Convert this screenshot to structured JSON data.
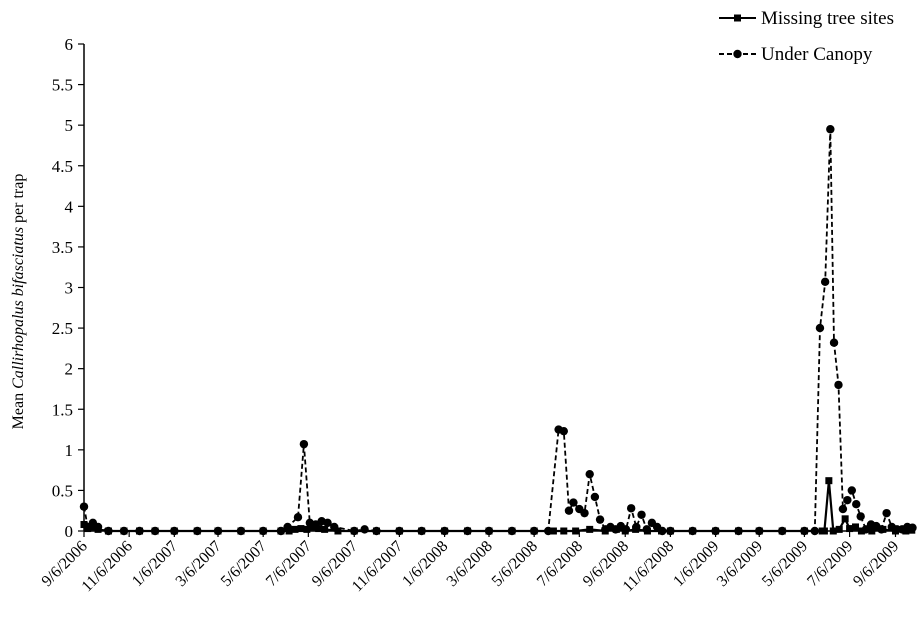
{
  "chart_data": {
    "type": "line",
    "ylabel_parts": [
      {
        "text": "Mean ",
        "italic": false
      },
      {
        "text": "Callirhopalus bifasciatus",
        "italic": true
      },
      {
        "text": " per trap",
        "italic": false
      }
    ],
    "xlabel": "",
    "ylim": [
      0,
      6
    ],
    "yticks": [
      "0",
      "0.5",
      "1",
      "1.5",
      "2",
      "2.5",
      "3",
      "3.5",
      "4",
      "4.5",
      "5",
      "5.5",
      "6"
    ],
    "xlim": [
      "2006-09-06",
      "2009-10-01"
    ],
    "xticks": [
      {
        "date": "2006-09-06",
        "label": "9/6/2006"
      },
      {
        "date": "2006-11-06",
        "label": "11/6/2006"
      },
      {
        "date": "2007-01-06",
        "label": "1/6/2007"
      },
      {
        "date": "2007-03-06",
        "label": "3/6/2007"
      },
      {
        "date": "2007-05-06",
        "label": "5/6/2007"
      },
      {
        "date": "2007-07-06",
        "label": "7/6/2007"
      },
      {
        "date": "2007-09-06",
        "label": "9/6/2007"
      },
      {
        "date": "2007-11-06",
        "label": "11/6/2007"
      },
      {
        "date": "2008-01-06",
        "label": "1/6/2008"
      },
      {
        "date": "2008-03-06",
        "label": "3/6/2008"
      },
      {
        "date": "2008-05-06",
        "label": "5/6/2008"
      },
      {
        "date": "2008-07-06",
        "label": "7/6/2008"
      },
      {
        "date": "2008-09-06",
        "label": "9/6/2008"
      },
      {
        "date": "2008-11-06",
        "label": "11/6/2008"
      },
      {
        "date": "2009-01-06",
        "label": "1/6/2009"
      },
      {
        "date": "2009-03-06",
        "label": "3/6/2009"
      },
      {
        "date": "2009-05-06",
        "label": "5/6/2009"
      },
      {
        "date": "2009-07-06",
        "label": "7/6/2009"
      },
      {
        "date": "2009-09-06",
        "label": "9/6/2009"
      }
    ],
    "grid": false,
    "legend_position": "top-right",
    "series": [
      {
        "name": "Missing tree sites",
        "line_style": "solid",
        "marker": "square",
        "color": "#000000",
        "points": [
          [
            "2006-09-06",
            0.08
          ],
          [
            "2006-09-11",
            0.03
          ],
          [
            "2006-09-18",
            0.05
          ],
          [
            "2006-09-25",
            0.02
          ],
          [
            "2006-10-09",
            0
          ],
          [
            "2006-10-30",
            0
          ],
          [
            "2006-11-20",
            0
          ],
          [
            "2006-12-11",
            0
          ],
          [
            "2007-01-06",
            0
          ],
          [
            "2007-02-06",
            0
          ],
          [
            "2007-03-06",
            0
          ],
          [
            "2007-04-06",
            0
          ],
          [
            "2007-05-06",
            0
          ],
          [
            "2007-05-30",
            0
          ],
          [
            "2007-06-10",
            0
          ],
          [
            "2007-06-18",
            0.02
          ],
          [
            "2007-06-26",
            0.03
          ],
          [
            "2007-07-04",
            0.02
          ],
          [
            "2007-07-12",
            0.05
          ],
          [
            "2007-07-20",
            0.03
          ],
          [
            "2007-07-28",
            0.02
          ],
          [
            "2007-08-15",
            0
          ],
          [
            "2007-09-06",
            0
          ],
          [
            "2007-10-06",
            0
          ],
          [
            "2007-11-06",
            0
          ],
          [
            "2007-12-06",
            0
          ],
          [
            "2008-01-06",
            0
          ],
          [
            "2008-02-06",
            0
          ],
          [
            "2008-03-06",
            0
          ],
          [
            "2008-04-06",
            0
          ],
          [
            "2008-05-06",
            0
          ],
          [
            "2008-06-01",
            0
          ],
          [
            "2008-06-15",
            0
          ],
          [
            "2008-07-01",
            0
          ],
          [
            "2008-07-20",
            0.02
          ],
          [
            "2008-08-10",
            0
          ],
          [
            "2008-08-25",
            0.02
          ],
          [
            "2008-09-06",
            0
          ],
          [
            "2008-09-20",
            0.02
          ],
          [
            "2008-10-06",
            0
          ],
          [
            "2008-10-25",
            0
          ],
          [
            "2008-11-06",
            0
          ],
          [
            "2008-12-06",
            0
          ],
          [
            "2009-01-06",
            0
          ],
          [
            "2009-02-06",
            0
          ],
          [
            "2009-03-06",
            0
          ],
          [
            "2009-04-06",
            0
          ],
          [
            "2009-05-06",
            0
          ],
          [
            "2009-05-30",
            0
          ],
          [
            "2009-06-02",
            0
          ],
          [
            "2009-06-08",
            0.62
          ],
          [
            "2009-06-14",
            0
          ],
          [
            "2009-06-22",
            0.02
          ],
          [
            "2009-06-30",
            0.15
          ],
          [
            "2009-07-06",
            0.03
          ],
          [
            "2009-07-14",
            0.05
          ],
          [
            "2009-07-22",
            0
          ],
          [
            "2009-08-05",
            0
          ],
          [
            "2009-08-20",
            0.02
          ],
          [
            "2009-09-06",
            0
          ],
          [
            "2009-09-20",
            0
          ],
          [
            "2009-09-28",
            0.01
          ]
        ]
      },
      {
        "name": "Under Canopy",
        "line_style": "dashed",
        "marker": "circle",
        "color": "#000000",
        "points": [
          [
            "2006-09-06",
            0.3
          ],
          [
            "2006-09-11",
            0.05
          ],
          [
            "2006-09-18",
            0.1
          ],
          [
            "2006-09-25",
            0.05
          ],
          [
            "2006-10-09",
            0
          ],
          [
            "2006-10-30",
            0
          ],
          [
            "2006-11-20",
            0
          ],
          [
            "2006-12-11",
            0
          ],
          [
            "2007-01-06",
            0
          ],
          [
            "2007-02-06",
            0
          ],
          [
            "2007-03-06",
            0
          ],
          [
            "2007-04-06",
            0
          ],
          [
            "2007-05-06",
            0
          ],
          [
            "2007-05-30",
            0
          ],
          [
            "2007-06-08",
            0.05
          ],
          [
            "2007-06-22",
            0.17
          ],
          [
            "2007-06-30",
            1.07
          ],
          [
            "2007-07-08",
            0.1
          ],
          [
            "2007-07-16",
            0.08
          ],
          [
            "2007-07-24",
            0.12
          ],
          [
            "2007-08-01",
            0.1
          ],
          [
            "2007-08-10",
            0.05
          ],
          [
            "2007-09-06",
            0
          ],
          [
            "2007-09-20",
            0.02
          ],
          [
            "2007-10-06",
            0
          ],
          [
            "2007-11-06",
            0
          ],
          [
            "2007-12-06",
            0
          ],
          [
            "2008-01-06",
            0
          ],
          [
            "2008-02-06",
            0
          ],
          [
            "2008-03-06",
            0
          ],
          [
            "2008-04-06",
            0
          ],
          [
            "2008-05-06",
            0
          ],
          [
            "2008-05-25",
            0
          ],
          [
            "2008-06-08",
            1.25
          ],
          [
            "2008-06-15",
            1.23
          ],
          [
            "2008-06-22",
            0.25
          ],
          [
            "2008-06-28",
            0.35
          ],
          [
            "2008-07-06",
            0.27
          ],
          [
            "2008-07-13",
            0.22
          ],
          [
            "2008-07-20",
            0.7
          ],
          [
            "2008-07-27",
            0.42
          ],
          [
            "2008-08-03",
            0.14
          ],
          [
            "2008-08-10",
            0.02
          ],
          [
            "2008-08-17",
            0.05
          ],
          [
            "2008-08-24",
            0.02
          ],
          [
            "2008-08-31",
            0.06
          ],
          [
            "2008-09-07",
            0.02
          ],
          [
            "2008-09-14",
            0.28
          ],
          [
            "2008-09-21",
            0.05
          ],
          [
            "2008-09-28",
            0.2
          ],
          [
            "2008-10-05",
            0.02
          ],
          [
            "2008-10-12",
            0.1
          ],
          [
            "2008-10-19",
            0.05
          ],
          [
            "2008-10-26",
            0
          ],
          [
            "2008-11-06",
            0
          ],
          [
            "2008-12-06",
            0
          ],
          [
            "2009-01-06",
            0
          ],
          [
            "2009-02-06",
            0
          ],
          [
            "2009-03-06",
            0
          ],
          [
            "2009-04-06",
            0
          ],
          [
            "2009-05-06",
            0
          ],
          [
            "2009-05-20",
            0
          ],
          [
            "2009-05-27",
            2.5
          ],
          [
            "2009-06-03",
            3.07
          ],
          [
            "2009-06-10",
            4.95
          ],
          [
            "2009-06-15",
            2.32
          ],
          [
            "2009-06-21",
            1.8
          ],
          [
            "2009-06-27",
            0.27
          ],
          [
            "2009-07-03",
            0.38
          ],
          [
            "2009-07-09",
            0.5
          ],
          [
            "2009-07-15",
            0.33
          ],
          [
            "2009-07-21",
            0.18
          ],
          [
            "2009-07-28",
            0.02
          ],
          [
            "2009-08-04",
            0.08
          ],
          [
            "2009-08-11",
            0.06
          ],
          [
            "2009-08-18",
            0.02
          ],
          [
            "2009-08-25",
            0.22
          ],
          [
            "2009-09-01",
            0.05
          ],
          [
            "2009-09-08",
            0.02
          ],
          [
            "2009-09-15",
            0.02
          ],
          [
            "2009-09-22",
            0.05
          ],
          [
            "2009-09-29",
            0.04
          ]
        ]
      }
    ]
  }
}
